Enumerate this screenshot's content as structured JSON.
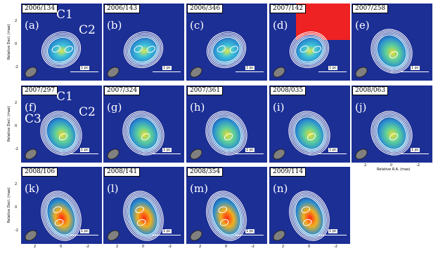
{
  "panels": [
    {
      "epoch": "2006/134",
      "letter": "(a)",
      "style": "early",
      "components": [
        "C1",
        "C2"
      ]
    },
    {
      "epoch": "2006/143",
      "letter": "(b)",
      "style": "early",
      "components": []
    },
    {
      "epoch": "2006/346",
      "letter": "(c)",
      "style": "early",
      "components": []
    },
    {
      "epoch": "2007/142",
      "letter": "(d)",
      "style": "early",
      "components": [],
      "highlight": "#ee2222"
    },
    {
      "epoch": "2007/258",
      "letter": "(e)",
      "style": "mid",
      "components": []
    },
    {
      "epoch": "2007/297",
      "letter": "(f)",
      "style": "mid",
      "components": [
        "C1",
        "C2",
        "C3"
      ]
    },
    {
      "epoch": "2007/324",
      "letter": "(g)",
      "style": "mid",
      "components": []
    },
    {
      "epoch": "2007/361",
      "letter": "(h)",
      "style": "mid",
      "components": []
    },
    {
      "epoch": "2008/035",
      "letter": "(i)",
      "style": "mid",
      "components": []
    },
    {
      "epoch": "2008/063",
      "letter": "(j)",
      "style": "mid",
      "components": []
    },
    {
      "epoch": "2008/106",
      "letter": "(k)",
      "style": "late",
      "components": []
    },
    {
      "epoch": "2008/141",
      "letter": "(l)",
      "style": "late",
      "components": []
    },
    {
      "epoch": "2008/354",
      "letter": "(m)",
      "style": "late",
      "components": []
    },
    {
      "epoch": "2009/114",
      "letter": "(n)",
      "style": "late",
      "components": []
    }
  ],
  "scale_label": "1 pc",
  "y_axis_label": "Relative Decl. (mas)",
  "x_axis_label": "Relative R.A. (mas)",
  "tick_labels": {
    "top": "2",
    "middle": "0",
    "bottom": "-2"
  },
  "colors": {
    "background": "#1c2f95",
    "contour": "#ffffff",
    "beam": "#808080"
  }
}
